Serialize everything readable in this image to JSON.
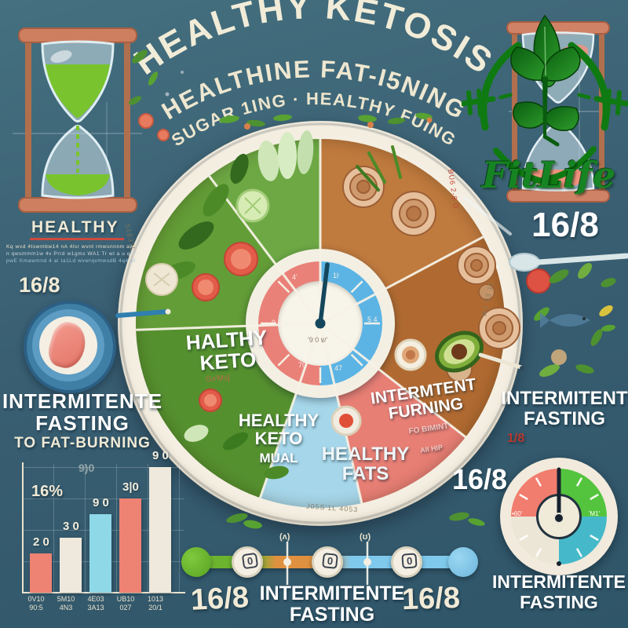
{
  "header": {
    "line1": "HEALTHY KETOSIS",
    "line2": "HEALTHINE FAT-I5NING",
    "line3": "SUGAR 1ING · HEALTHY FUING"
  },
  "logo": {
    "brand": "FitLife"
  },
  "left": {
    "heading": "HEALTHY",
    "fineprint1": "Kq wvd 4tswmbw14 nA 4lsr wvnt rmwsnnnm aw 4lvt",
    "fineprint2": "n qwsmmm1w 4v Prrd w1gms WA1 Tr wl a u qalrlwvy CTWERA",
    "fineprint3": "pwE Kmawmnd 4 al ta1Ld wvwrqvmwsdB 4q4 pl mnlvhal qwbp",
    "ratio": "16/8",
    "fasting1": "INTERMITENTE",
    "fasting2": "FASTING",
    "fasting3": "TO FAT-BURNING"
  },
  "chart_data": {
    "type": "bar",
    "categories": [
      "0V10 90:5",
      "5M10 4N3",
      "4E03 3A13",
      "UB10 027",
      "1013 20/1"
    ],
    "values": [
      25,
      35,
      50,
      60,
      80
    ],
    "value_labels": [
      "2 0",
      "3 0",
      "9 0",
      "3|0",
      "9 0"
    ],
    "bar_colors": [
      "#ee8273",
      "#eee9dc",
      "#8ed8e8",
      "#ee8273",
      "#eee9dc"
    ],
    "side_label": "16%",
    "ghost_label": "9)0",
    "x_labels_top": [
      "0V10",
      "5M10",
      "4E03",
      "UB10",
      "1013"
    ],
    "x_labels_bottom": [
      "90:5",
      "4N3",
      "3A13",
      "027",
      "20/1"
    ],
    "title": "",
    "xlabel": "",
    "ylabel": "",
    "ylim": [
      0,
      100
    ],
    "grid": true,
    "legend": false
  },
  "plate": {
    "keto1a": "HALTHY",
    "keto1b": "KETO",
    "keto1_sub": "Gʌ'Mɔ]",
    "keto2a": "HEALTHY",
    "keto2b": "KETO",
    "keto2c": "MUAL",
    "fats1": "HEALTHY",
    "fats2": "FATS",
    "burn1": "INTERMTENT",
    "burn2": "FURNING",
    "burn3": "FO BIMINT",
    "burn4": "AII HIP",
    "rim_garble_left": "51837L",
    "rim_garble_bottom": "J05S'1L 4053",
    "rim_garble_right": "W1 03 11",
    "rim_garble_red": "BU6 2-8 D",
    "clock": {
      "n1": "1ŀ",
      "n2": "5 4",
      "n3": "47",
      "n4": "4'",
      "n5": "9 6",
      "n6": "70",
      "center": "'9ˑ0 ש'"
    }
  },
  "right": {
    "ratio_big": "16/8",
    "fasting1": "INTERMITENT",
    "fasting2": "FASTING",
    "small_ratio": "1/8",
    "ratio_mid": "16/8",
    "gauge_left": "•60'",
    "gauge_right": "'M1'",
    "gauge_caption1": "INTERMITENTE",
    "gauge_caption2": "FASTING"
  },
  "timeline": {
    "left_label": "16/8",
    "center1": "INTERMITENTE",
    "center2": "FASTING",
    "right_label": "16/8",
    "tick1": "(ʌ)",
    "tick2": "(ʊ)",
    "knob_glyph": "0"
  },
  "colors": {
    "background": "#3a5f73",
    "cream": "#f1ead6",
    "plate_rim": "#efe8d9",
    "green_dark": "#55902f",
    "green_mid": "#639d37",
    "green_light": "#6da844",
    "meat1": "#bf7a3e",
    "meat2": "#b06a31",
    "pink": "#e87f75",
    "light_blue": "#a6d6e9",
    "clock_red": "#e98179",
    "clock_blue": "#5cb4e4",
    "gauge_red": "#f07d6e",
    "gauge_green": "#54c43e",
    "gauge_teal": "#45b9c9",
    "timeline_green": "#6cb32e",
    "timeline_orange": "#e0913f",
    "timeline_blue": "#7fc9ec",
    "sand_green": "#79c42e",
    "sand_salmon": "#f0927e",
    "logo_green": "#0f7a12"
  }
}
